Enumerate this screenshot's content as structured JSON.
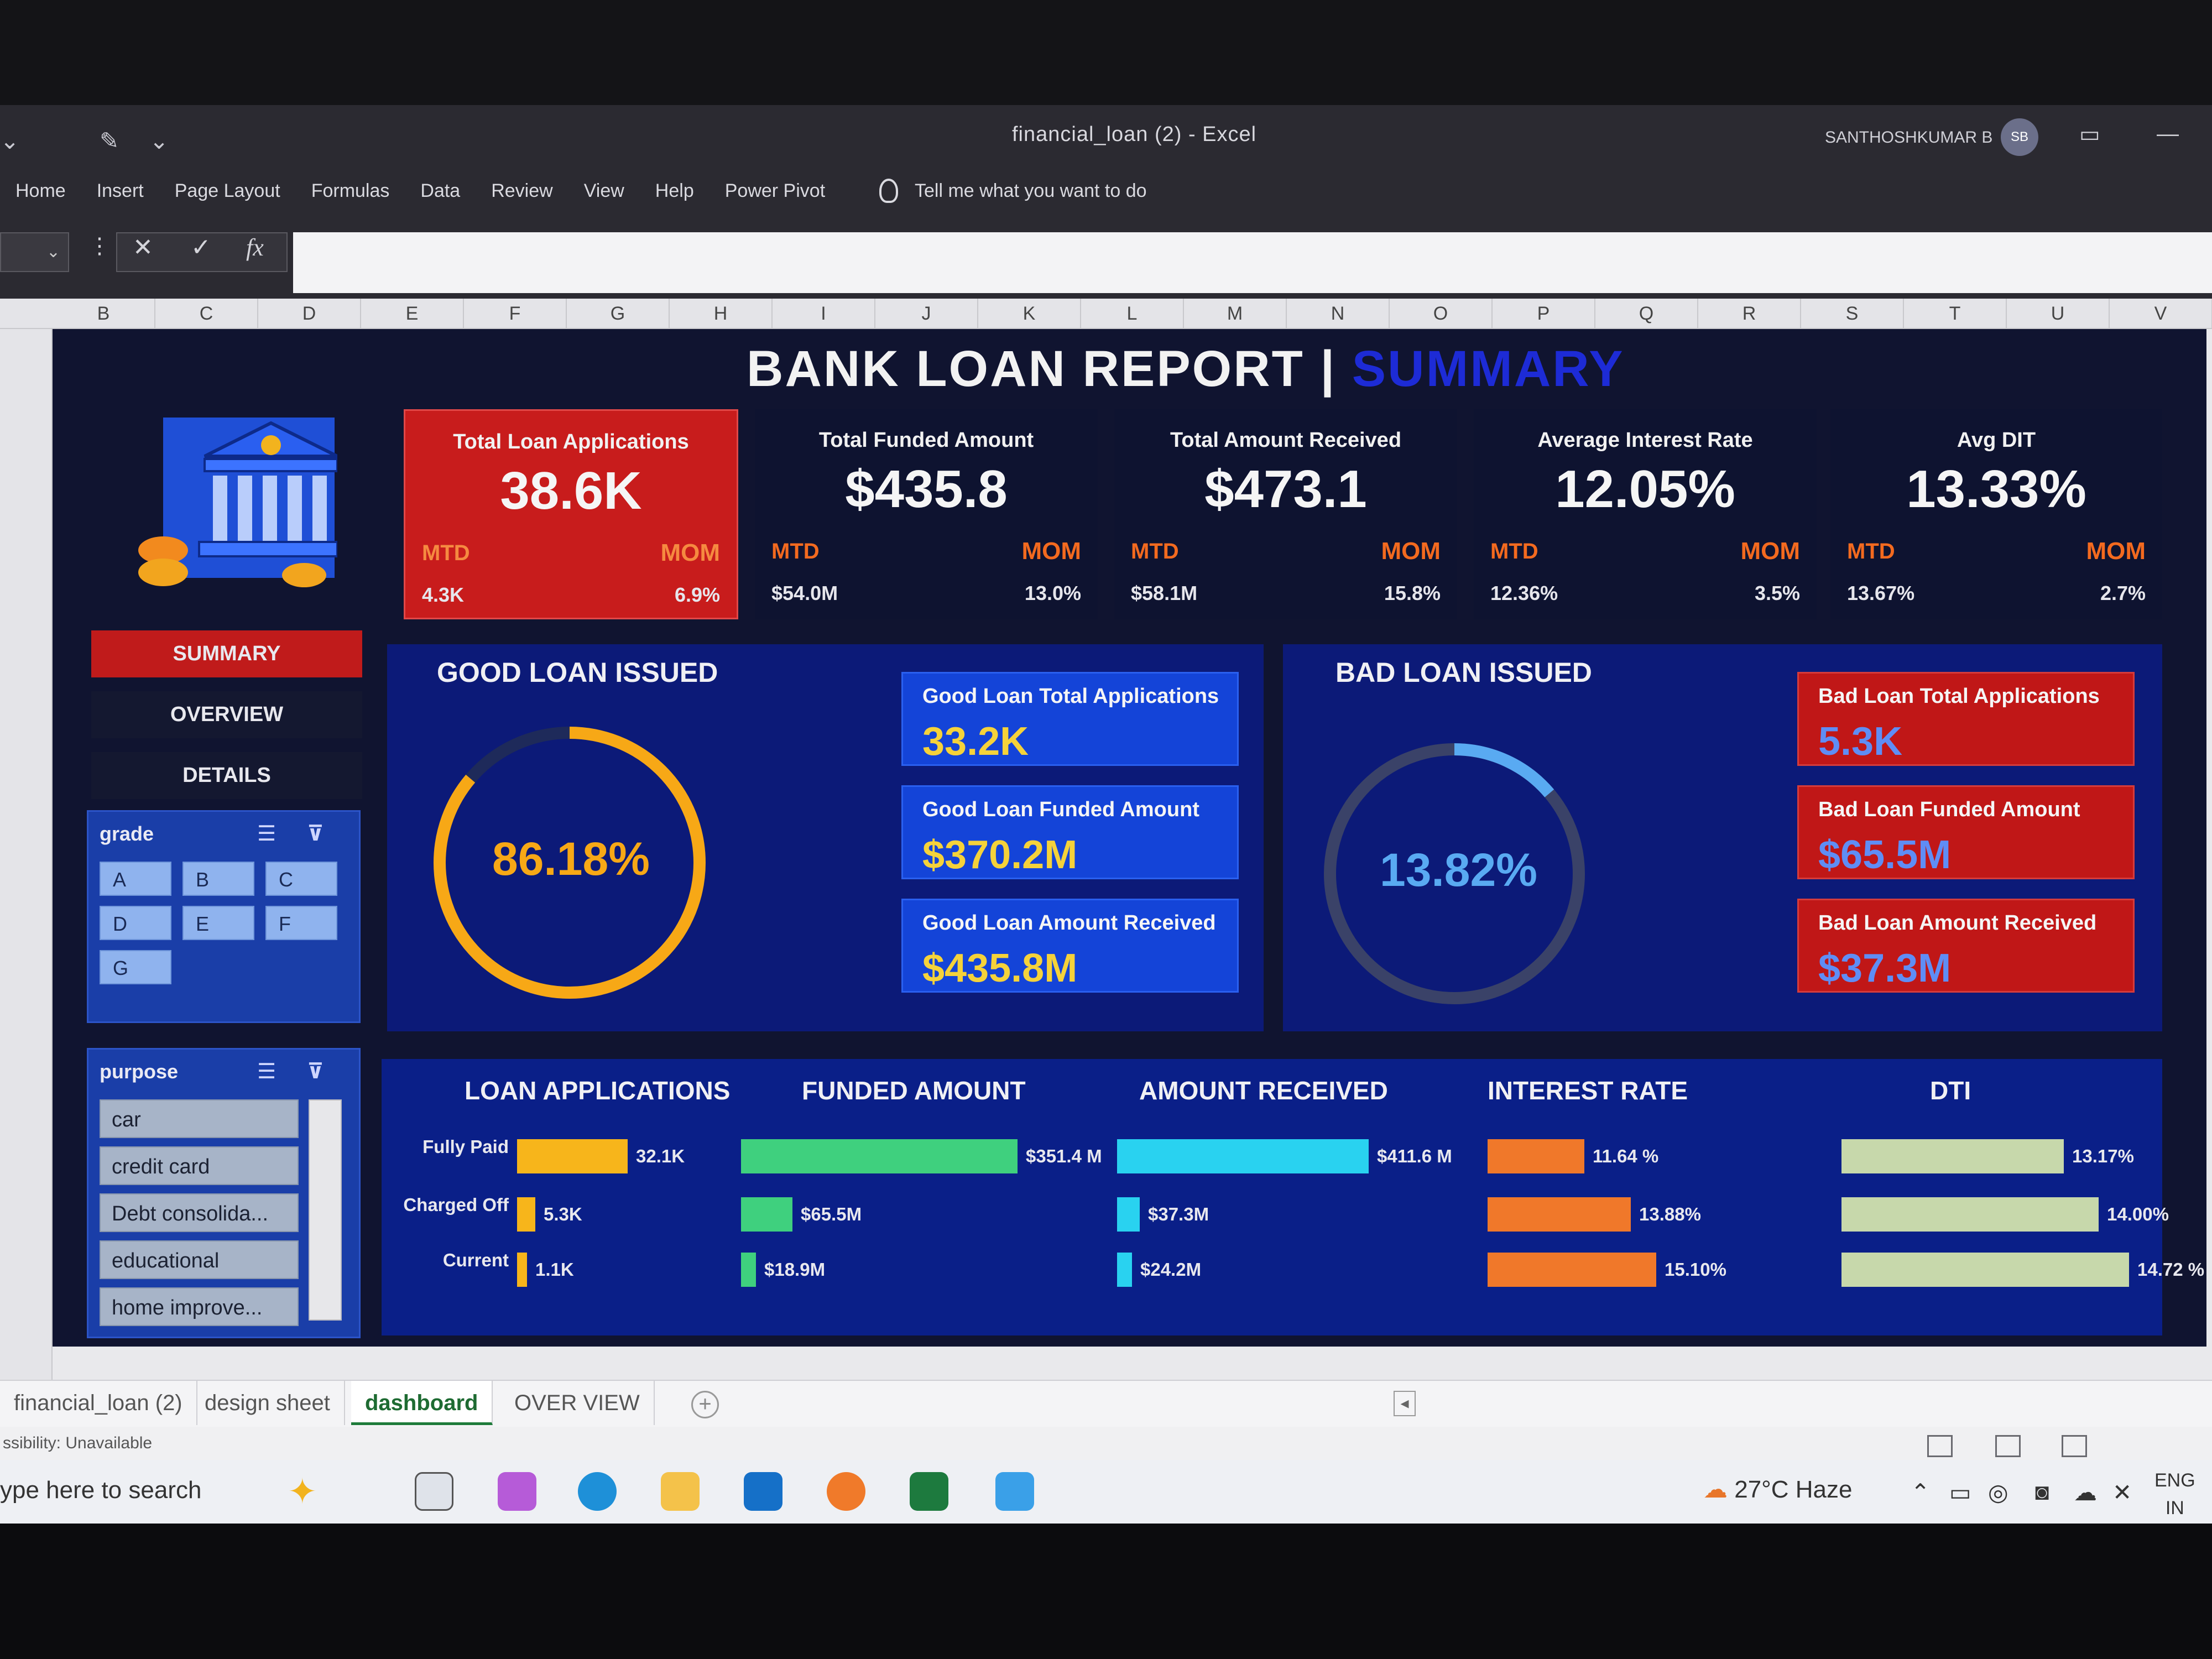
{
  "window": {
    "title": "financial_loan (2)  -  Excel",
    "user_name": "SANTHOSHKUMAR B",
    "user_initials": "SB"
  },
  "ribbon": {
    "tabs": [
      "Home",
      "Insert",
      "Page Layout",
      "Formulas",
      "Data",
      "Review",
      "View",
      "Help",
      "Power Pivot"
    ],
    "tell_me": "Tell me what you want to do"
  },
  "formula_bar": {
    "cancel": "✕",
    "enter": "✓",
    "fx": "fx"
  },
  "columns": [
    "B",
    "C",
    "D",
    "E",
    "F",
    "G",
    "H",
    "I",
    "J",
    "K",
    "L",
    "M",
    "N",
    "O",
    "P",
    "Q",
    "R",
    "S",
    "T",
    "U",
    "V"
  ],
  "dashboard": {
    "title": "BANK LOAN REPORT",
    "title_sep": "|",
    "title_sub": "SUMMARY",
    "nav": [
      "SUMMARY",
      "OVERVIEW",
      "DETAILS"
    ],
    "grade_slicer": {
      "title": "grade",
      "options": [
        "A",
        "B",
        "C",
        "D",
        "E",
        "F",
        "G"
      ]
    },
    "purpose_slicer": {
      "title": "purpose",
      "options": [
        "car",
        "credit card",
        "Debt consolida...",
        "educational",
        "home improve..."
      ]
    },
    "kpis": [
      {
        "title": "Total Loan Applications",
        "value": "38.6K",
        "mtd_label": "MTD",
        "mtd": "4.3K",
        "mom_label": "MOM",
        "mom": "6.9%"
      },
      {
        "title": "Total Funded Amount",
        "value": "$435.8",
        "mtd_label": "MTD",
        "mtd": "$54.0M",
        "mom_label": "MOM",
        "mom": "13.0%"
      },
      {
        "title": "Total Amount Received",
        "value": "$473.1",
        "mtd_label": "MTD",
        "mtd": "$58.1M",
        "mom_label": "MOM",
        "mom": "15.8%"
      },
      {
        "title": "Average Interest Rate",
        "value": "12.05%",
        "mtd_label": "MTD",
        "mtd": "12.36%",
        "mom_label": "MOM",
        "mom": "3.5%"
      },
      {
        "title": "Avg DIT",
        "value": "13.33%",
        "mtd_label": "MTD",
        "mtd": "13.67%",
        "mom_label": "MOM",
        "mom": "2.7%"
      }
    ],
    "good_loan": {
      "title": "GOOD LOAN ISSUED",
      "percent_label": "86.18%",
      "percent": 0.8618,
      "color": "#f7a816",
      "cards": [
        {
          "label": "Good Loan Total Applications",
          "value": "33.2K"
        },
        {
          "label": "Good Loan Funded Amount",
          "value": "$370.2M"
        },
        {
          "label": "Good Loan Amount Received",
          "value": "$435.8M"
        }
      ]
    },
    "bad_loan": {
      "title": "BAD LOAN ISSUED",
      "percent_label": "13.82%",
      "percent": 0.1382,
      "color": "#59aaf2",
      "cards": [
        {
          "label": "Bad Loan Total Applications",
          "value": "5.3K"
        },
        {
          "label": "Bad Loan Funded Amount",
          "value": "$65.5M"
        },
        {
          "label": "Bad Loan Amount Received",
          "value": "$37.3M"
        }
      ]
    }
  },
  "chart_data": {
    "type": "bar",
    "categories": [
      "Fully Paid",
      "Charged Off",
      "Current"
    ],
    "series": [
      {
        "name": "LOAN APPLICATIONS",
        "values": [
          32.1,
          5.3,
          1.1
        ],
        "labels": [
          "32.1K",
          "5.3K",
          "1.1K"
        ],
        "color": "#f7b51b"
      },
      {
        "name": "FUNDED AMOUNT",
        "values": [
          351.4,
          65.5,
          18.9
        ],
        "labels": [
          "$351.4 M",
          "$65.5M",
          "$18.9M"
        ],
        "color": "#3fd07e"
      },
      {
        "name": "AMOUNT RECEIVED",
        "values": [
          411.6,
          37.3,
          24.2
        ],
        "labels": [
          "$411.6 M",
          "$37.3M",
          "$24.2M"
        ],
        "color": "#29d2f0"
      },
      {
        "name": "INTEREST RATE",
        "values": [
          11.64,
          13.88,
          15.1
        ],
        "labels": [
          "11.64 %",
          "13.88%",
          "15.10%"
        ],
        "color": "#f0782a"
      },
      {
        "name": "DTI",
        "values": [
          13.17,
          14.0,
          14.72
        ],
        "labels": [
          "13.17%",
          "14.00%",
          "14.72 %"
        ],
        "color": "#c7d8ab"
      }
    ]
  },
  "sheet_tabs": [
    "financial_loan (2)",
    "design sheet",
    "dashboard",
    "OVER VIEW"
  ],
  "active_tab": "dashboard",
  "status": {
    "accessibility": "ssibility: Unavailable"
  },
  "taskbar": {
    "search": "ype here to search",
    "temperature": "27°C",
    "weather": "Haze",
    "lang_1": "ENG",
    "lang_2": "IN"
  }
}
